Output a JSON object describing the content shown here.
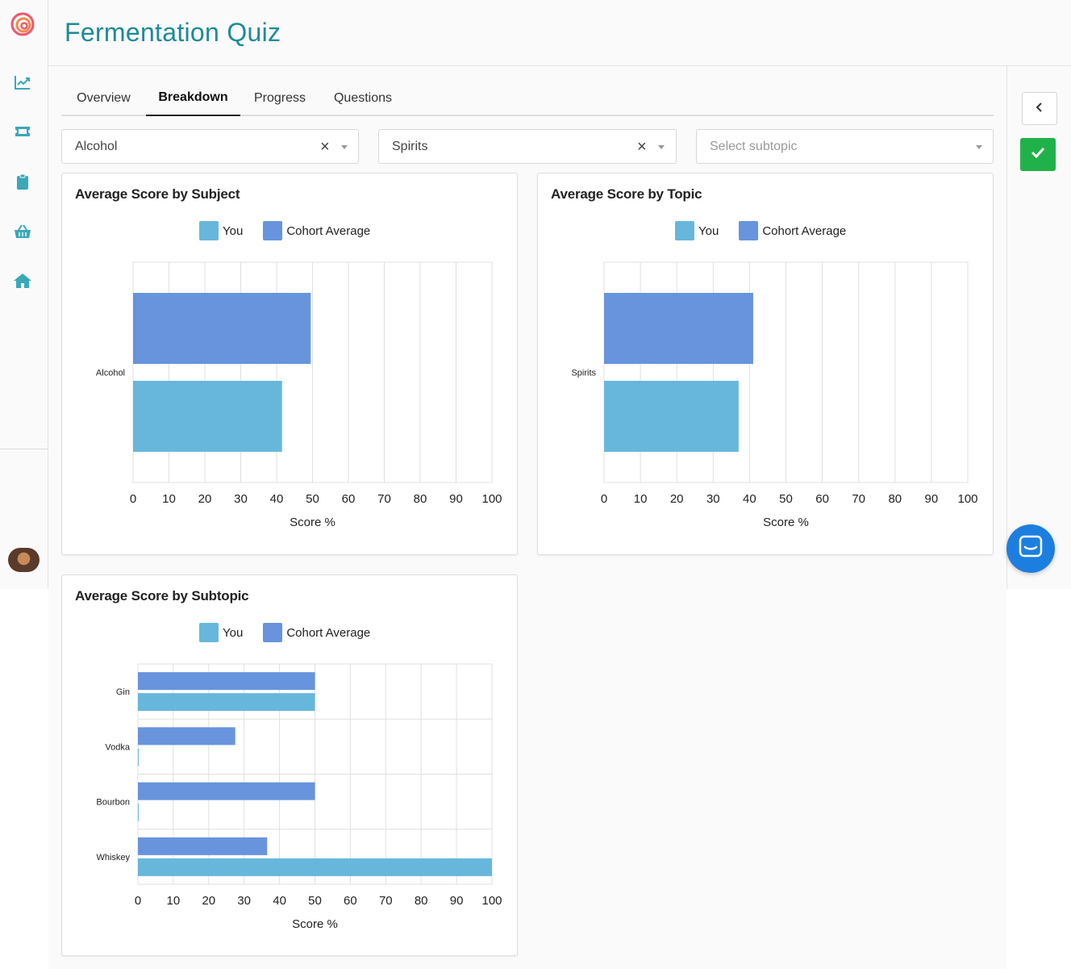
{
  "app": {
    "title": "Fermentation Quiz",
    "sidebar_icons": [
      "chart-line-icon",
      "ticket-icon",
      "clipboard-icon",
      "basket-icon",
      "home-icon"
    ]
  },
  "tabs": [
    {
      "label": "Overview",
      "active": false
    },
    {
      "label": "Breakdown",
      "active": true
    },
    {
      "label": "Progress",
      "active": false
    },
    {
      "label": "Questions",
      "active": false
    }
  ],
  "filters": {
    "subject": {
      "value": "Alcohol"
    },
    "topic": {
      "value": "Spirits"
    },
    "subtopic": {
      "placeholder": "Select subtopic"
    }
  },
  "colors": {
    "accent": "#1d8a99",
    "you": "#67b7dc",
    "cohort": "#6794dc",
    "confirm": "#21b14a",
    "chat": "#1c7fe0"
  },
  "legend": {
    "you": "You",
    "cohort": "Cohort Average"
  },
  "chart_data": [
    {
      "type": "bar",
      "orientation": "horizontal",
      "title": "Average Score by Subject",
      "xlabel": "Score %",
      "ylabel": "",
      "xlim": [
        0,
        100
      ],
      "ticks": [
        0,
        10,
        20,
        30,
        40,
        50,
        60,
        70,
        80,
        90,
        100
      ],
      "categories": [
        "Alcohol"
      ],
      "series": [
        {
          "name": "Cohort Average",
          "values": [
            49.5
          ]
        },
        {
          "name": "You",
          "values": [
            41.5
          ]
        }
      ],
      "grid": true,
      "legend": "top-center"
    },
    {
      "type": "bar",
      "orientation": "horizontal",
      "title": "Average Score by Topic",
      "xlabel": "Score %",
      "ylabel": "",
      "xlim": [
        0,
        100
      ],
      "ticks": [
        0,
        10,
        20,
        30,
        40,
        50,
        60,
        70,
        80,
        90,
        100
      ],
      "categories": [
        "Spirits"
      ],
      "series": [
        {
          "name": "Cohort Average",
          "values": [
            41
          ]
        },
        {
          "name": "You",
          "values": [
            37
          ]
        }
      ],
      "grid": true,
      "legend": "top-center"
    },
    {
      "type": "bar",
      "orientation": "horizontal",
      "title": "Average Score by Subtopic",
      "xlabel": "Score %",
      "ylabel": "",
      "xlim": [
        0,
        100
      ],
      "ticks": [
        0,
        10,
        20,
        30,
        40,
        50,
        60,
        70,
        80,
        90,
        100
      ],
      "categories": [
        "Gin",
        "Vodka",
        "Bourbon",
        "Whiskey"
      ],
      "series": [
        {
          "name": "Cohort Average",
          "values": [
            50,
            27.5,
            50,
            36.5
          ]
        },
        {
          "name": "You",
          "values": [
            50,
            0,
            0,
            100
          ]
        }
      ],
      "grid": true,
      "legend": "top-center"
    }
  ]
}
